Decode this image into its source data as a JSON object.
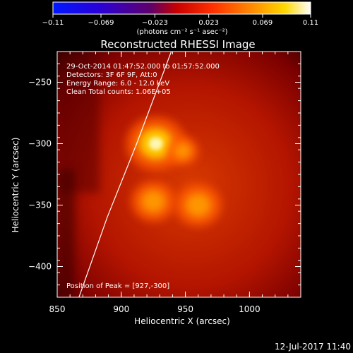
{
  "chart_data": {
    "type": "heatmap",
    "title": "Reconstructed RHESSI Image",
    "xlabel": "Heliocentric X (arcsec)",
    "ylabel": "Heliocentric Y (arcsec)",
    "xlim": [
      850,
      1040
    ],
    "ylim": [
      -425,
      -225
    ],
    "xticks": [
      "850",
      "900",
      "950",
      "1000"
    ],
    "yticks": [
      "-250",
      "-300",
      "-350",
      "-400"
    ],
    "colorbar": {
      "ticks": [
        "-0.11",
        "-0.069",
        "-0.023",
        "0.023",
        "0.069",
        "0.11"
      ],
      "range": [
        -0.11,
        0.11
      ],
      "label": "(photons cm⁻² s⁻¹ asec⁻²)",
      "colormap": "IDL rainbow-hot (blue-purple-red-orange-yellow-white)"
    },
    "annotations": [
      "29-Oct-2014 01:47:52.000 to 01:57:52.000",
      "Detectors: 3F 6F 9F, Att:0",
      "Energy Range: 6.0 - 12.0 keV",
      "Clean    Total counts: 1.06E+05"
    ],
    "peak_label": "Position of Peak = [927,-300]",
    "sources": [
      {
        "x": 927,
        "y": -300,
        "intensity": 0.11
      },
      {
        "x": 925,
        "y": -347,
        "intensity": 0.075
      },
      {
        "x": 960,
        "y": -350,
        "intensity": 0.08
      },
      {
        "x": 948,
        "y": -306,
        "intensity": 0.045
      }
    ],
    "limb_curve": [
      [
        939,
        -225
      ],
      [
        912,
        -300
      ],
      [
        889,
        -360
      ],
      [
        867,
        -425
      ]
    ]
  },
  "footer": {
    "timestamp": "12-Jul-2017 11:40"
  }
}
